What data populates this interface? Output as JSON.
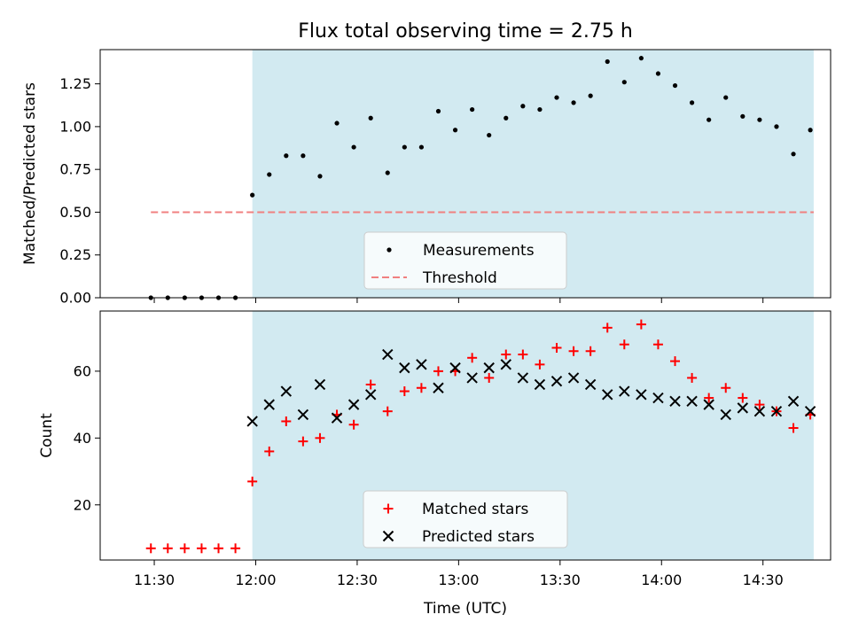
{
  "chart_data": [
    {
      "type": "scatter",
      "title": "Flux total observing time = 2.75 h",
      "xlabel": "",
      "ylabel": "Matched/Predicted stars",
      "ylim": [
        0,
        1.45
      ],
      "yticks": [
        "0.00",
        "0.25",
        "0.50",
        "0.75",
        "1.00",
        "1.25"
      ],
      "yticks_values": [
        0,
        0.25,
        0.5,
        0.75,
        1.0,
        1.25
      ],
      "xlim": [
        "11:14",
        "14:50"
      ],
      "shaded_interval": [
        "11:59",
        "14:45"
      ],
      "shade_color": "#add8e6",
      "legend_position": "lower center",
      "series": [
        {
          "name": "Measurements",
          "marker": "dot",
          "color": "#000000",
          "x": [
            "11:29",
            "11:34",
            "11:39",
            "11:44",
            "11:49",
            "11:54",
            "11:59",
            "12:04",
            "12:09",
            "12:14",
            "12:19",
            "12:24",
            "12:29",
            "12:34",
            "12:39",
            "12:44",
            "12:49",
            "12:54",
            "12:59",
            "13:04",
            "13:09",
            "13:14",
            "13:19",
            "13:24",
            "13:29",
            "13:34",
            "13:39",
            "13:44",
            "13:49",
            "13:54",
            "13:59",
            "14:04",
            "14:09",
            "14:14",
            "14:19",
            "14:24",
            "14:29",
            "14:34",
            "14:39",
            "14:44"
          ],
          "y": [
            0,
            0,
            0,
            0,
            0,
            0,
            0.6,
            0.72,
            0.83,
            0.83,
            0.71,
            1.02,
            0.88,
            1.05,
            0.73,
            0.88,
            0.88,
            1.09,
            0.98,
            1.1,
            0.95,
            1.05,
            1.12,
            1.1,
            1.17,
            1.14,
            1.18,
            1.38,
            1.26,
            1.4,
            1.31,
            1.24,
            1.14,
            1.04,
            1.17,
            1.06,
            1.04,
            1.0,
            0.84,
            0.98
          ]
        },
        {
          "name": "Threshold",
          "marker": "dashed-line",
          "color": "#f08080",
          "x": [
            "11:29",
            "14:45"
          ],
          "y": [
            0.5,
            0.5
          ]
        }
      ]
    },
    {
      "type": "scatter",
      "title": "",
      "xlabel": "Time (UTC)",
      "ylabel": "Count",
      "ylim": [
        3.5,
        78
      ],
      "yticks": [
        "20",
        "40",
        "60"
      ],
      "yticks_values": [
        20,
        40,
        60
      ],
      "xlim": [
        "11:14",
        "14:50"
      ],
      "xticks": [
        "11:30",
        "12:00",
        "12:30",
        "13:00",
        "13:30",
        "14:00",
        "14:30"
      ],
      "shaded_interval": [
        "11:59",
        "14:45"
      ],
      "shade_color": "#add8e6",
      "legend_position": "lower center",
      "series": [
        {
          "name": "Matched stars",
          "marker": "plus",
          "color": "#ff0000",
          "x": [
            "11:29",
            "11:34",
            "11:39",
            "11:44",
            "11:49",
            "11:54",
            "11:59",
            "12:04",
            "12:09",
            "12:14",
            "12:19",
            "12:24",
            "12:29",
            "12:34",
            "12:39",
            "12:44",
            "12:49",
            "12:54",
            "12:59",
            "13:04",
            "13:09",
            "13:14",
            "13:19",
            "13:24",
            "13:29",
            "13:34",
            "13:39",
            "13:44",
            "13:49",
            "13:54",
            "13:59",
            "14:04",
            "14:09",
            "14:14",
            "14:19",
            "14:24",
            "14:29",
            "14:34",
            "14:39",
            "14:44"
          ],
          "y": [
            7,
            7,
            7,
            7,
            7,
            7,
            27,
            36,
            45,
            39,
            40,
            47,
            44,
            56,
            48,
            54,
            55,
            60,
            60,
            64,
            58,
            65,
            65,
            62,
            67,
            66,
            66,
            73,
            68,
            74,
            68,
            63,
            58,
            52,
            55,
            52,
            50,
            48,
            43,
            47
          ]
        },
        {
          "name": "Predicted stars",
          "marker": "x",
          "color": "#000000",
          "x": [
            "11:59",
            "12:04",
            "12:09",
            "12:14",
            "12:19",
            "12:24",
            "12:29",
            "12:34",
            "12:39",
            "12:44",
            "12:49",
            "12:54",
            "12:59",
            "13:04",
            "13:09",
            "13:14",
            "13:19",
            "13:24",
            "13:29",
            "13:34",
            "13:39",
            "13:44",
            "13:49",
            "13:54",
            "13:59",
            "14:04",
            "14:09",
            "14:14",
            "14:19",
            "14:24",
            "14:29",
            "14:34",
            "14:39",
            "14:44"
          ],
          "y": [
            45,
            50,
            54,
            47,
            56,
            46,
            50,
            53,
            65,
            61,
            62,
            55,
            61,
            58,
            61,
            62,
            58,
            56,
            57,
            58,
            56,
            53,
            54,
            53,
            52,
            51,
            51,
            50,
            47,
            49,
            48,
            48,
            51,
            48
          ]
        }
      ]
    }
  ]
}
